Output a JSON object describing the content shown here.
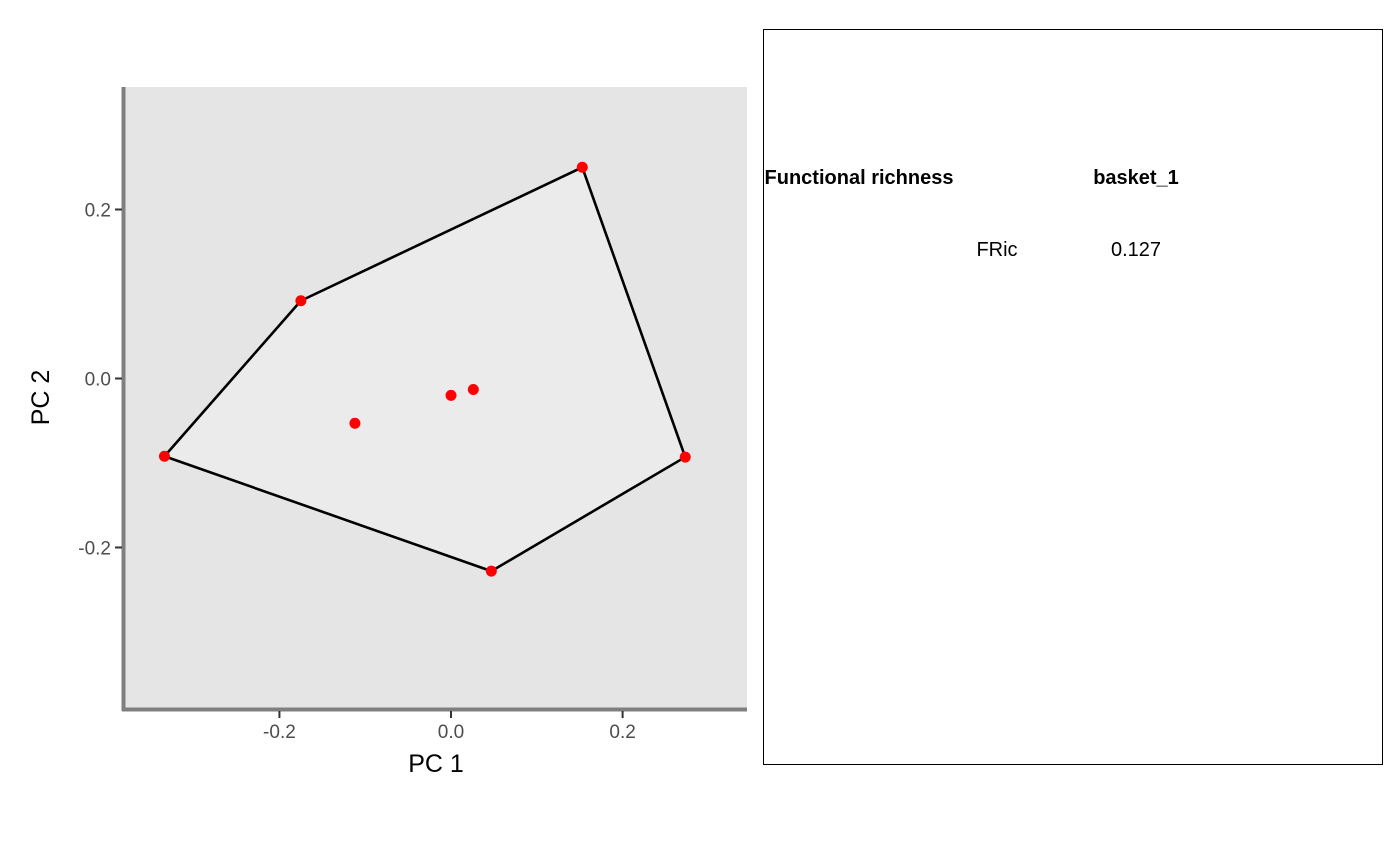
{
  "colors": {
    "panel_background": "#e5e5e5",
    "hull_fill": "#ebebeb",
    "hull_stroke": "#000000",
    "points": "#ff0000",
    "axis_line": "#7f7f7f"
  },
  "chart_data": {
    "type": "scatter",
    "xlabel": "PC 1",
    "ylabel": "PC 2",
    "xlim": [
      -0.38,
      0.345
    ],
    "ylim": [
      -0.39,
      0.345
    ],
    "xticks": [
      -0.2,
      0.0,
      0.2
    ],
    "yticks": [
      -0.2,
      0.0,
      0.2
    ],
    "xtick_labels": [
      "-0.2",
      "0.0",
      "0.2"
    ],
    "ytick_labels": [
      "-0.2",
      "0.0",
      "0.2"
    ],
    "grid": false,
    "points": [
      {
        "x": 0.153,
        "y": 0.25
      },
      {
        "x": -0.175,
        "y": 0.092
      },
      {
        "x": -0.334,
        "y": -0.092
      },
      {
        "x": 0.047,
        "y": -0.228
      },
      {
        "x": 0.273,
        "y": -0.093
      },
      {
        "x": -0.112,
        "y": -0.053
      },
      {
        "x": 0.0,
        "y": -0.02
      },
      {
        "x": 0.026,
        "y": -0.013
      }
    ],
    "hull": [
      {
        "x": 0.153,
        "y": 0.25
      },
      {
        "x": -0.175,
        "y": 0.092
      },
      {
        "x": -0.334,
        "y": -0.092
      },
      {
        "x": 0.047,
        "y": -0.228
      },
      {
        "x": 0.273,
        "y": -0.093
      }
    ]
  },
  "table": {
    "headers": [
      "Functional richness",
      "basket_1"
    ],
    "rows": [
      {
        "label": "FRic",
        "value": "0.127"
      }
    ]
  }
}
